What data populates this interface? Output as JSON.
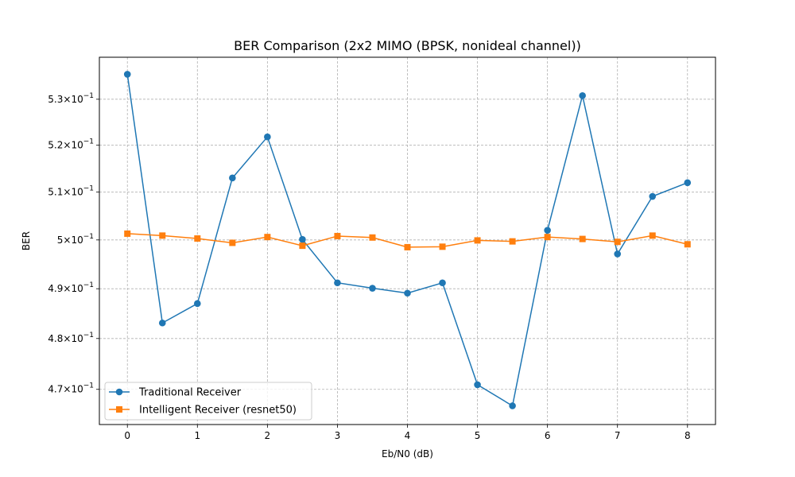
{
  "chart_data": {
    "type": "line",
    "title": "BER Comparison (2x2 MIMO (BPSK, nonideal channel))",
    "xlabel": "Eb/N0 (dB)",
    "ylabel": "BER",
    "x": [
      0,
      0.5,
      1,
      1.5,
      2,
      2.5,
      3,
      3.5,
      4,
      4.5,
      5,
      5.5,
      6,
      6.5,
      7,
      7.5,
      8
    ],
    "xlim": [
      -0.4,
      8.4
    ],
    "ylim": [
      0.4632,
      0.5393
    ],
    "yscale": "log",
    "xticks": [
      0,
      1,
      2,
      3,
      4,
      5,
      6,
      7,
      8
    ],
    "yticks": [
      {
        "value": 0.47,
        "mantissa": "4.7",
        "base": "10",
        "exp": "−1"
      },
      {
        "value": 0.48,
        "mantissa": "4.8",
        "base": "10",
        "exp": "−1"
      },
      {
        "value": 0.49,
        "mantissa": "4.9",
        "base": "10",
        "exp": "−1"
      },
      {
        "value": 0.5,
        "mantissa": "5",
        "base": "10",
        "exp": "−1"
      },
      {
        "value": 0.51,
        "mantissa": "5.1",
        "base": "10",
        "exp": "−1"
      },
      {
        "value": 0.52,
        "mantissa": "5.2",
        "base": "10",
        "exp": "−1"
      },
      {
        "value": 0.53,
        "mantissa": "5.3",
        "base": "10",
        "exp": "−1"
      }
    ],
    "grid": true,
    "legend_position": "lower-left",
    "series": [
      {
        "name": "Traditional Receiver",
        "color": "#1f77b4",
        "marker": "circle",
        "values": [
          0.5355,
          0.4831,
          0.487,
          0.513,
          0.5218,
          0.5001,
          0.4912,
          0.4901,
          0.4891,
          0.4912,
          0.4709,
          0.4668,
          0.502,
          0.5308,
          0.4971,
          0.5091,
          0.512
        ]
      },
      {
        "name": "Intelligent Receiver (resnet50)",
        "color": "#ff7f0e",
        "marker": "square",
        "values": [
          0.5013,
          0.5009,
          0.5003,
          0.4994,
          0.5006,
          0.4988,
          0.5008,
          0.5005,
          0.4985,
          0.4986,
          0.4999,
          0.4997,
          0.5006,
          0.5002,
          0.4996,
          0.5009,
          0.4991
        ]
      }
    ]
  }
}
